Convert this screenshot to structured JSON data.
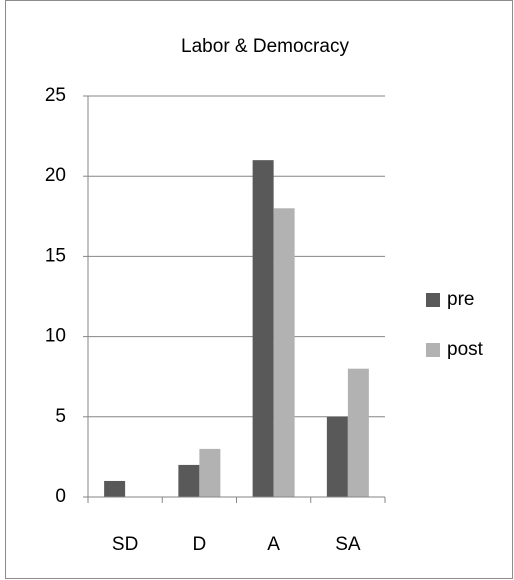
{
  "chart_data": {
    "type": "bar",
    "title": "Labor & Democracy",
    "categories": [
      "SD",
      "D",
      "A",
      "SA"
    ],
    "series": [
      {
        "name": "pre",
        "color": "#595959",
        "values": [
          1,
          2,
          21,
          5
        ]
      },
      {
        "name": "post",
        "color": "#b2b2b2",
        "values": [
          0,
          3,
          18,
          8
        ]
      }
    ],
    "ylim": [
      0,
      25
    ],
    "yticks": [
      0,
      5,
      10,
      15,
      20,
      25
    ],
    "grid": true,
    "legend": "right"
  }
}
